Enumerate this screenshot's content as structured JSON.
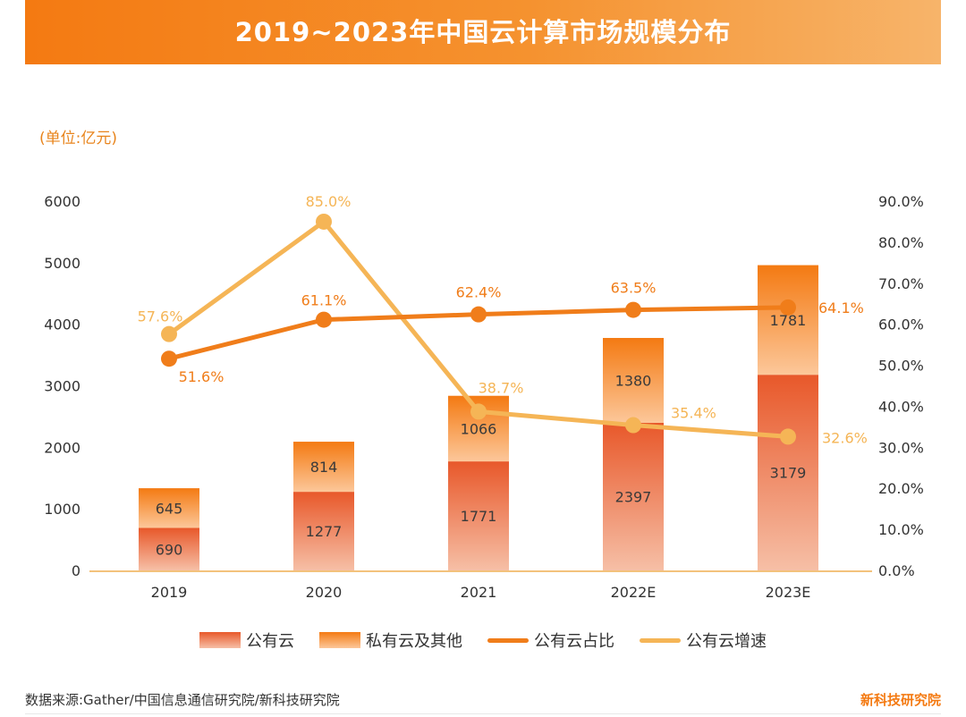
{
  "title": "2019~2023年中国云计算市场规模分布",
  "unit_label": "(单位:亿元)",
  "source": "数据来源:Gather/中国信息通信研究院/新科技研究院",
  "brand": "新科技研究院",
  "colors": {
    "public_bar_top": "#e8582a",
    "public_bar_bottom": "#f6bfa6",
    "private_bar_top": "#f47a12",
    "private_bar_bottom": "#fcc79a",
    "share_line": "#f07d1a",
    "growth_line": "#f5b556",
    "axis_text": "#333333",
    "baseline": "#f3c27c"
  },
  "chart_data": {
    "type": "bar",
    "stacked": true,
    "title": "2019~2023年中国云计算市场规模分布",
    "categories": [
      "2019",
      "2020",
      "2021",
      "2022E",
      "2023E"
    ],
    "series": [
      {
        "name": "公有云",
        "type": "bar",
        "values": [
          690,
          1277,
          1771,
          2397,
          3179
        ],
        "labels": [
          "690",
          "1277",
          "1771",
          "2397",
          "3179"
        ]
      },
      {
        "name": "私有云及其他",
        "type": "bar",
        "values": [
          645,
          814,
          1066,
          1380,
          1781
        ],
        "labels": [
          "645",
          "814",
          "1066",
          "1380",
          "1781"
        ]
      },
      {
        "name": "公有云占比",
        "type": "line",
        "axis": "right",
        "values": [
          51.6,
          61.1,
          62.4,
          63.5,
          64.1
        ],
        "labels": [
          "51.6%",
          "61.1%",
          "62.4%",
          "63.5%",
          "64.1%"
        ]
      },
      {
        "name": "公有云增速",
        "type": "line",
        "axis": "right",
        "values": [
          57.6,
          85.0,
          38.7,
          35.4,
          32.6
        ],
        "labels": [
          "57.6%",
          "85.0%",
          "38.7%",
          "35.4%",
          "32.6%"
        ]
      }
    ],
    "y_left": {
      "min": 0,
      "max": 6000,
      "ticks": [
        "0",
        "1000",
        "2000",
        "3000",
        "4000",
        "5000",
        "6000"
      ]
    },
    "y_right": {
      "min": 0,
      "max": 90,
      "ticks": [
        "0.0%",
        "10.0%",
        "20.0%",
        "30.0%",
        "40.0%",
        "50.0%",
        "60.0%",
        "70.0%",
        "80.0%",
        "90.0%"
      ]
    },
    "legend": [
      "公有云",
      "私有云及其他",
      "公有云占比",
      "公有云增速"
    ],
    "legend_position": "bottom",
    "grid": false
  }
}
